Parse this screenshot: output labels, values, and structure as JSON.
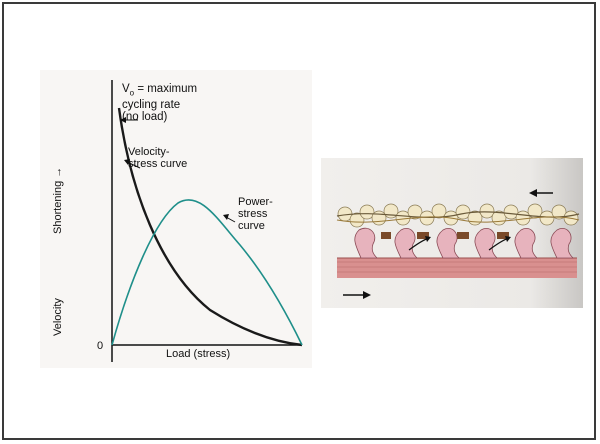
{
  "graph": {
    "vo_prefix": "V",
    "vo_sub": "o",
    "vo_line1": " = maximum",
    "vo_line2": "cycling rate",
    "vo_line3": "(no load)",
    "velocity_stress_line1": "Velocity-",
    "velocity_stress_line2": "stress curve",
    "power_stress_line1": "Power-",
    "power_stress_line2": "stress",
    "power_stress_line3": "curve",
    "y_label_top": "Shortening →",
    "y_label_bottom": "Velocity",
    "zero": "0",
    "x_label": "Load (stress)",
    "velocity_color": "#1a1a1a",
    "power_color": "#1f8f8a"
  },
  "muscle_diagram": {
    "thin_filament_color": "#f2e8c8",
    "myosin_head_color": "#e7b3bd",
    "thick_filament_color": "#d9908f",
    "arrow_top_direction": "left",
    "arrow_bottom_direction": "right"
  }
}
